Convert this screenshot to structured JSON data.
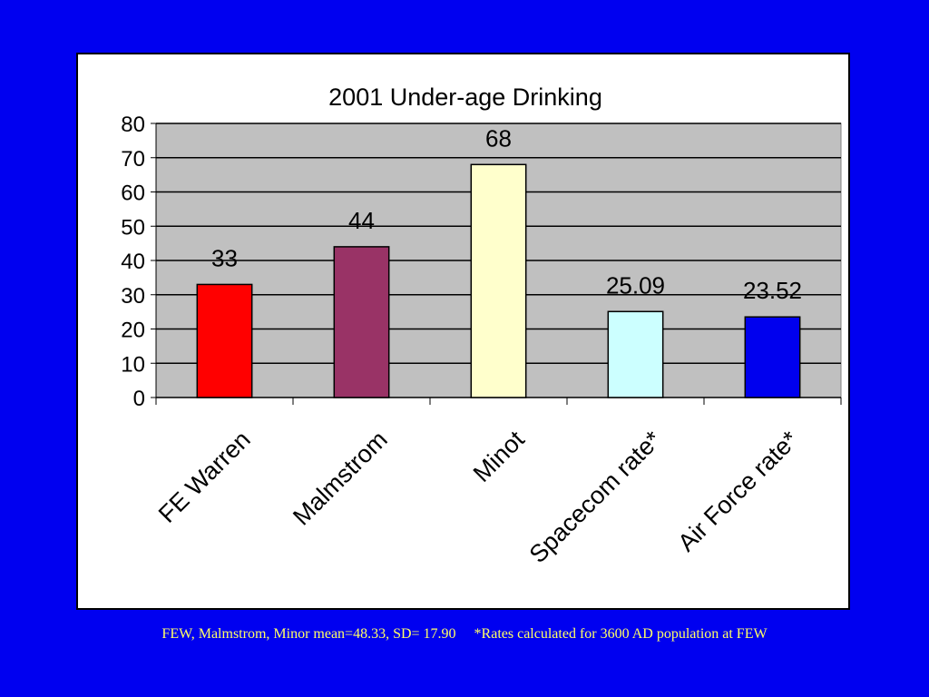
{
  "colors": {
    "background": "#0000f0",
    "plot_area": "#c0c0c0",
    "footnote_text": "#ffff66"
  },
  "chart_data": {
    "type": "bar",
    "title": "2001 Under-age Drinking",
    "categories": [
      "FE Warren",
      "Malmstrom",
      "Minot",
      "Spacecom rate*",
      "Air Force rate*"
    ],
    "values": [
      33,
      44,
      68,
      25.09,
      23.52
    ],
    "data_labels": [
      "33",
      "44",
      "68",
      "25.09",
      "23.52"
    ],
    "bar_colors": [
      "#ff0000",
      "#993366",
      "#ffffcc",
      "#ccffff",
      "#0000ee"
    ],
    "xlabel": "",
    "ylabel": "",
    "ylim": [
      0,
      80
    ],
    "yticks": [
      0,
      10,
      20,
      30,
      40,
      50,
      60,
      70,
      80
    ],
    "grid": true,
    "legend": "none"
  },
  "footnote": {
    "left": "FEW, Malmstrom, Minor mean=48.33, SD= 17.90",
    "right": "*Rates calculated for 3600 AD population at FEW"
  }
}
